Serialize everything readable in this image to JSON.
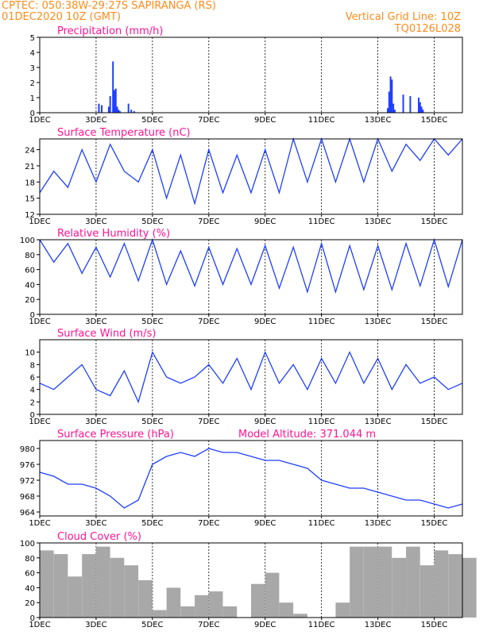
{
  "header": {
    "line1": "CPTEC:    050:38W-29:27S   SAPIRANGA (RS)",
    "line2": "01DEC2020 10Z (GMT)",
    "right1": "Vertical Grid Line: 10Z",
    "right2": "TQ0126L028",
    "color": "#ff8c1a"
  },
  "colors": {
    "title": "#ff1493",
    "line": "#1f3fff",
    "bar": "#1f3fff",
    "cloud": "#a8a8a8"
  },
  "x_labels": [
    "1DEC",
    "3DEC",
    "5DEC",
    "7DEC",
    "9DEC",
    "11DEC",
    "13DEC",
    "15DEC"
  ],
  "chart_data": [
    {
      "type": "bar",
      "title": "Precipitation (mm/h)",
      "ylim": [
        0,
        5
      ],
      "yticks": [
        0,
        1,
        2,
        3,
        4,
        5
      ],
      "x": [
        2.1,
        2.2,
        2.45,
        2.5,
        2.6,
        2.65,
        2.7,
        2.75,
        2.8,
        2.85,
        3.15,
        3.25,
        3.35,
        12.35,
        12.4,
        12.45,
        12.5,
        12.55,
        12.6,
        12.9,
        13.15,
        13.45,
        13.5,
        13.55,
        13.6
      ],
      "values": [
        0.6,
        0.5,
        0.4,
        1.1,
        3.4,
        1.5,
        1.6,
        0.4,
        0.2,
        0.1,
        0.6,
        0.2,
        0.1,
        0.3,
        1.4,
        2.4,
        2.2,
        0.6,
        0.2,
        1.2,
        1.1,
        1.0,
        0.7,
        0.4,
        0.2
      ]
    },
    {
      "type": "line",
      "title": "Surface Temperature (nC)",
      "ylim": [
        12,
        26
      ],
      "yticks": [
        12,
        15,
        18,
        21,
        24
      ],
      "x": [
        0,
        0.5,
        1,
        1.5,
        2,
        2.5,
        3,
        3.5,
        4,
        4.5,
        5,
        5.5,
        6,
        6.5,
        7,
        7.5,
        8,
        8.5,
        9,
        9.5,
        10,
        10.5,
        11,
        11.5,
        12,
        12.5,
        13,
        13.5,
        14,
        14.5,
        15
      ],
      "values": [
        16,
        20,
        17,
        24,
        18,
        25,
        20,
        18,
        24,
        15,
        23,
        14,
        24,
        16,
        23,
        16,
        24,
        16,
        26,
        18,
        26,
        18,
        26,
        18,
        26,
        20,
        25,
        22,
        26,
        23,
        26
      ]
    },
    {
      "type": "line",
      "title": "Relative Humidity (%)",
      "ylim": [
        0,
        100
      ],
      "yticks": [
        0,
        20,
        40,
        60,
        80,
        100
      ],
      "x": [
        0,
        0.5,
        1,
        1.5,
        2,
        2.5,
        3,
        3.5,
        4,
        4.5,
        5,
        5.5,
        6,
        6.5,
        7,
        7.5,
        8,
        8.5,
        9,
        9.5,
        10,
        10.5,
        11,
        11.5,
        12,
        12.5,
        13,
        13.5,
        14,
        14.5,
        15
      ],
      "values": [
        100,
        70,
        95,
        55,
        90,
        50,
        95,
        45,
        100,
        40,
        85,
        38,
        90,
        40,
        88,
        40,
        92,
        35,
        90,
        30,
        95,
        30,
        92,
        33,
        92,
        33,
        95,
        38,
        100,
        37,
        100
      ]
    },
    {
      "type": "line",
      "title": "Surface Wind (m/s)",
      "ylim": [
        0,
        12
      ],
      "yticks": [
        0,
        2,
        4,
        6,
        8,
        10
      ],
      "x": [
        0,
        0.5,
        1,
        1.5,
        2,
        2.5,
        3,
        3.5,
        4,
        4.5,
        5,
        5.5,
        6,
        6.5,
        7,
        7.5,
        8,
        8.5,
        9,
        9.5,
        10,
        10.5,
        11,
        11.5,
        12,
        12.5,
        13,
        13.5,
        14,
        14.5,
        15
      ],
      "values": [
        5,
        4,
        6,
        8,
        4,
        3,
        7,
        2,
        10,
        6,
        5,
        6,
        8,
        5,
        9,
        4,
        10,
        5,
        8,
        4,
        9,
        5,
        10,
        5,
        9,
        4,
        8,
        5,
        6,
        4,
        5
      ]
    },
    {
      "type": "line",
      "title": "Surface Pressure (hPa)",
      "annotation": "Model Altitude: 371.044 m",
      "ylim": [
        963,
        982
      ],
      "yticks": [
        964,
        968,
        972,
        976,
        980
      ],
      "x": [
        0,
        0.5,
        1,
        1.5,
        2,
        2.5,
        3,
        3.5,
        4,
        4.5,
        5,
        5.5,
        6,
        6.5,
        7,
        7.5,
        8,
        8.5,
        9,
        9.5,
        10,
        10.5,
        11,
        11.5,
        12,
        12.5,
        13,
        13.5,
        14,
        14.5,
        15
      ],
      "values": [
        974,
        973,
        971,
        971,
        970,
        968,
        965,
        967,
        976,
        978,
        979,
        978,
        980,
        979,
        979,
        978,
        977,
        977,
        976,
        975,
        972,
        971,
        970,
        970,
        969,
        968,
        967,
        967,
        966,
        965,
        966
      ]
    },
    {
      "type": "area",
      "title": "Cloud Cover (%)",
      "ylim": [
        0,
        100
      ],
      "yticks": [
        0,
        20,
        40,
        60,
        80,
        100
      ],
      "x": [
        0,
        0.5,
        1,
        1.5,
        2,
        2.5,
        3,
        3.5,
        4,
        4.5,
        5,
        5.5,
        6,
        6.5,
        7,
        7.5,
        8,
        8.5,
        9,
        9.5,
        10,
        10.5,
        11,
        11.5,
        12,
        12.5,
        13,
        13.5,
        14,
        14.5,
        15
      ],
      "values": [
        90,
        85,
        55,
        85,
        95,
        80,
        70,
        50,
        10,
        40,
        15,
        30,
        35,
        15,
        0,
        45,
        60,
        20,
        5,
        0,
        0,
        20,
        95,
        95,
        95,
        80,
        95,
        70,
        90,
        85,
        80
      ]
    }
  ]
}
